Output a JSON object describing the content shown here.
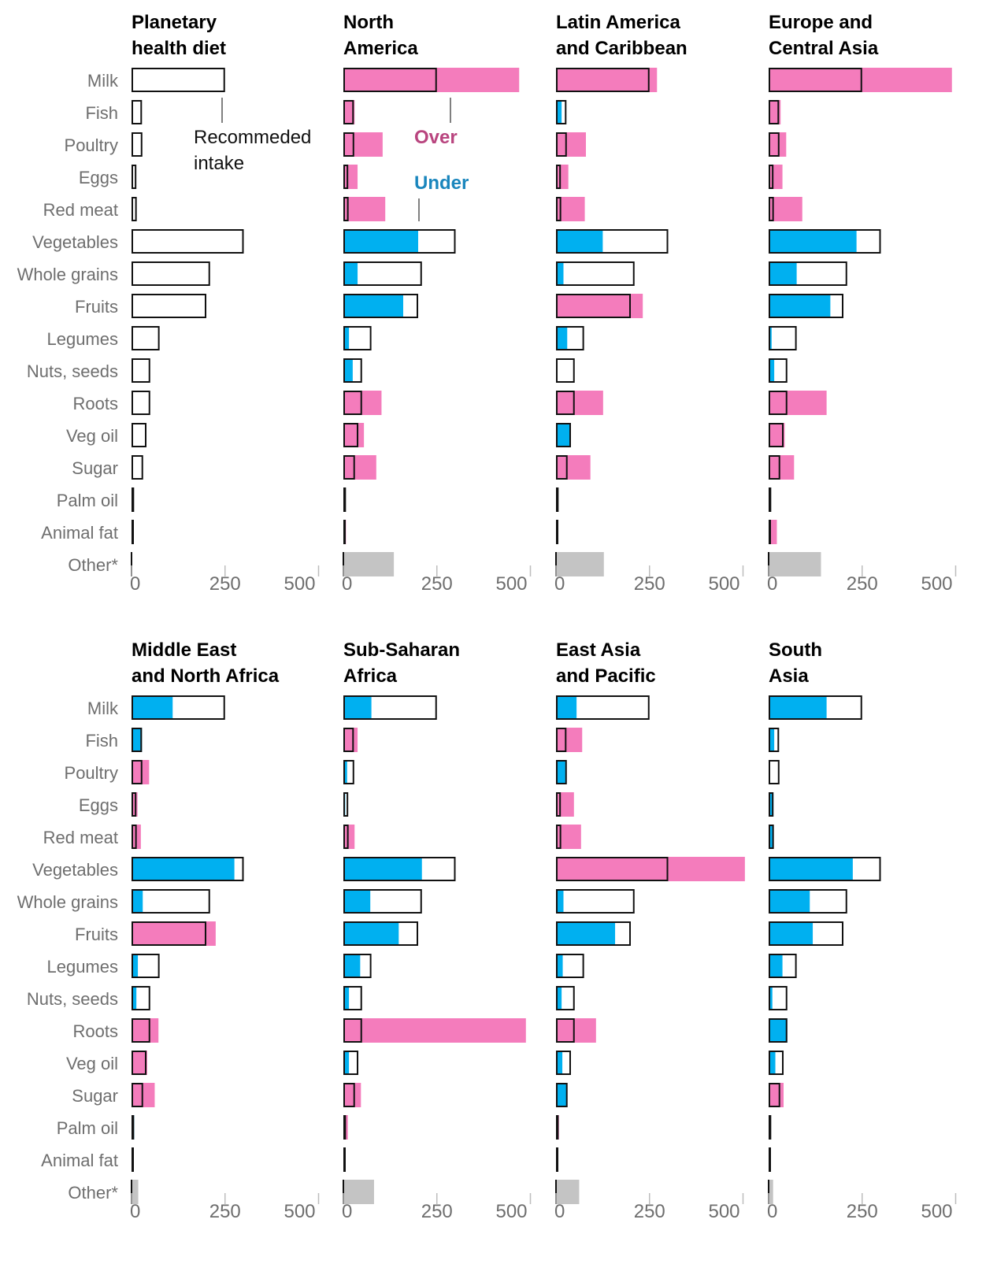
{
  "colors": {
    "over": "#f47cbc",
    "under": "#00b0f0",
    "other": "#c4c4c4",
    "outline": "#111111",
    "axis": "#bdbdbd",
    "over_text": "#b9457f",
    "under_text": "#1a86bd"
  },
  "annotations": {
    "recommended_line1": "Recommeded",
    "recommended_line2": "intake",
    "over": "Over",
    "under": "Under"
  },
  "chart_data": {
    "type": "bar",
    "orientation": "horizontal",
    "categories": [
      "Milk",
      "Fish",
      "Poultry",
      "Eggs",
      "Red meat",
      "Vegetables",
      "Whole grains",
      "Fruits",
      "Legumes",
      "Nuts, seeds",
      "Roots",
      "Veg oil",
      "Sugar",
      "Palm oil",
      "Animal fat",
      "Other*"
    ],
    "xlim": [
      0,
      500
    ],
    "xticks": [
      0,
      250,
      500
    ],
    "recommended": [
      250,
      28,
      29,
      13,
      14,
      300,
      210,
      200,
      75,
      50,
      50,
      40,
      31,
      7,
      5,
      0
    ],
    "panels": [
      {
        "title": [
          "Planetary",
          "health diet"
        ],
        "values": null
      },
      {
        "title": [
          "North",
          "America"
        ],
        "values": [
          470,
          30,
          105,
          38,
          112,
          200,
          38,
          160,
          15,
          25,
          102,
          55,
          88,
          5,
          7,
          135
        ]
      },
      {
        "title": [
          "Latin America",
          "and Caribbean"
        ],
        "values": [
          270,
          15,
          80,
          33,
          77,
          125,
          20,
          232,
          30,
          3,
          126,
          40,
          92,
          6,
          5,
          128
        ]
      },
      {
        "title": [
          "Europe and",
          "Central Asia"
        ],
        "values": [
          490,
          32,
          47,
          37,
          90,
          235,
          75,
          165,
          8,
          15,
          155,
          43,
          68,
          4,
          22,
          140
        ]
      },
      {
        "title": [
          "Middle East",
          "and North Africa"
        ],
        "values": [
          110,
          28,
          47,
          16,
          25,
          275,
          30,
          225,
          17,
          13,
          72,
          42,
          62,
          7,
          5,
          18
        ]
      },
      {
        "title": [
          "Sub-Saharan",
          "Africa"
        ],
        "values": [
          75,
          38,
          10,
          5,
          30,
          210,
          72,
          148,
          45,
          15,
          488,
          15,
          47,
          12,
          4,
          82
        ]
      },
      {
        "title": [
          "East Asia",
          "and Pacific"
        ],
        "values": [
          55,
          70,
          25,
          48,
          67,
          505,
          20,
          158,
          18,
          15,
          107,
          17,
          30,
          8,
          3,
          62
        ]
      },
      {
        "title": [
          "South",
          "Asia"
        ],
        "values": [
          155,
          15,
          2,
          13,
          12,
          225,
          110,
          118,
          37,
          10,
          50,
          18,
          40,
          5,
          3,
          12
        ]
      }
    ]
  }
}
